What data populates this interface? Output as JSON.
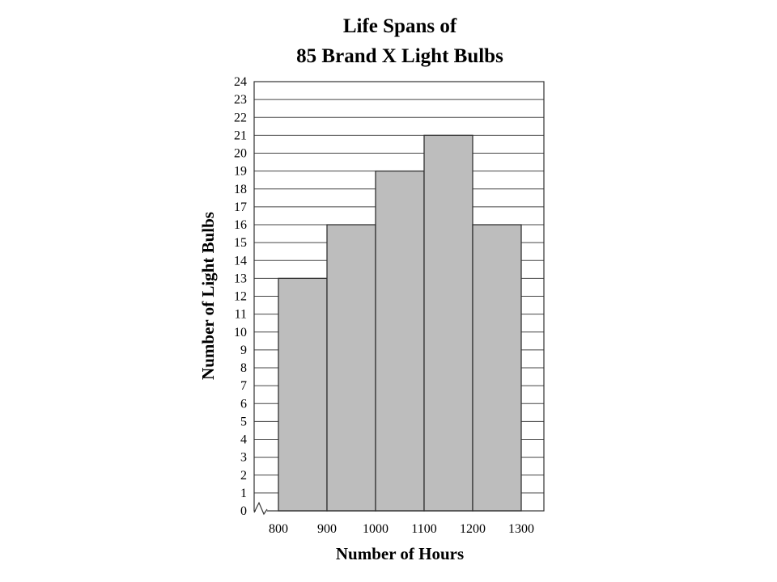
{
  "chart_data": {
    "type": "bar",
    "title_lines": [
      "Life Spans of",
      "85 Brand X Light Bulbs"
    ],
    "xlabel": "Number of Hours",
    "ylabel": "Number of Light Bulbs",
    "bins": [
      {
        "from": 800,
        "to": 900,
        "value": 13
      },
      {
        "from": 900,
        "to": 1000,
        "value": 16
      },
      {
        "from": 1000,
        "to": 1100,
        "value": 19
      },
      {
        "from": 1100,
        "to": 1200,
        "value": 21
      },
      {
        "from": 1200,
        "to": 1300,
        "value": 16
      }
    ],
    "x_ticks": [
      "800",
      "900",
      "1000",
      "1100",
      "1200",
      "1300"
    ],
    "ylim": [
      0,
      24
    ],
    "y_ticks": [
      "0",
      "1",
      "2",
      "3",
      "4",
      "5",
      "6",
      "7",
      "8",
      "9",
      "10",
      "11",
      "12",
      "13",
      "14",
      "15",
      "16",
      "17",
      "18",
      "19",
      "20",
      "21",
      "22",
      "23",
      "24"
    ],
    "grid": "horizontal",
    "axis_break": true,
    "colors": {
      "bar_fill": "#bdbdbd",
      "bar_stroke": "#333333",
      "grid": "#444444"
    }
  }
}
